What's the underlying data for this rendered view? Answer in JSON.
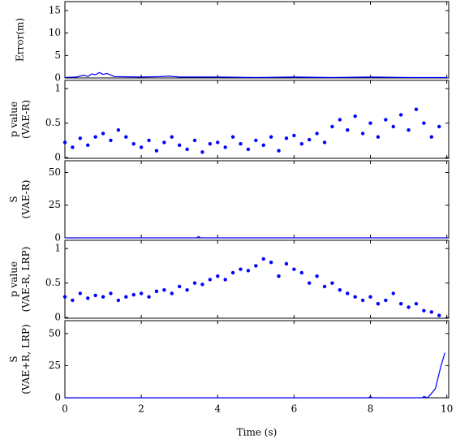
{
  "chart_data": [
    {
      "type": "line",
      "ylabel": [
        "Error(m)"
      ],
      "color": "#0000ff",
      "x": [
        0,
        0.3,
        0.5,
        0.6,
        0.7,
        0.8,
        0.9,
        1.0,
        1.1,
        1.3,
        2.0,
        2.5,
        2.7,
        3.0,
        4.0,
        5.0,
        6.0,
        7.0,
        8.0,
        9.0,
        10.0
      ],
      "values": [
        0.1,
        0.2,
        0.6,
        0.3,
        0.9,
        0.7,
        1.2,
        0.8,
        1.0,
        0.3,
        0.2,
        0.3,
        0.4,
        0.2,
        0.2,
        0.1,
        0.2,
        0.1,
        0.2,
        0.1,
        0.1
      ],
      "xlim": [
        0,
        10.05
      ],
      "ylim": [
        0,
        17
      ],
      "yticks": [
        0,
        5,
        10,
        15
      ]
    },
    {
      "type": "scatter",
      "ylabel": [
        "p value",
        "(VAE-R)"
      ],
      "color": "#0000ff",
      "x": [
        0,
        0.2,
        0.4,
        0.6,
        0.8,
        1.0,
        1.2,
        1.4,
        1.6,
        1.8,
        2.0,
        2.2,
        2.4,
        2.6,
        2.8,
        3.0,
        3.2,
        3.4,
        3.6,
        3.8,
        4.0,
        4.2,
        4.4,
        4.6,
        4.8,
        5.0,
        5.2,
        5.4,
        5.6,
        5.8,
        6.0,
        6.2,
        6.4,
        6.6,
        6.8,
        7.0,
        7.2,
        7.4,
        7.6,
        7.8,
        8.0,
        8.2,
        8.4,
        8.6,
        8.8,
        9.0,
        9.2,
        9.4,
        9.6,
        9.8
      ],
      "values": [
        0.22,
        0.15,
        0.28,
        0.18,
        0.3,
        0.35,
        0.25,
        0.4,
        0.3,
        0.2,
        0.15,
        0.25,
        0.1,
        0.22,
        0.3,
        0.18,
        0.12,
        0.25,
        0.08,
        0.2,
        0.22,
        0.15,
        0.3,
        0.2,
        0.12,
        0.25,
        0.18,
        0.3,
        0.1,
        0.28,
        0.32,
        0.2,
        0.26,
        0.35,
        0.22,
        0.45,
        0.55,
        0.4,
        0.6,
        0.35,
        0.5,
        0.3,
        0.55,
        0.45,
        0.62,
        0.4,
        0.7,
        0.5,
        0.3,
        0.45
      ],
      "xlim": [
        0,
        10.05
      ],
      "ylim": [
        -0.01,
        1.12
      ],
      "yticks": [
        0,
        0.5,
        1
      ]
    },
    {
      "type": "line",
      "ylabel": [
        "S",
        "(VAE-R)"
      ],
      "color": "#0000ff",
      "x": [
        0,
        3.45,
        3.5,
        3.55,
        10
      ],
      "values": [
        0,
        0,
        1,
        0,
        0
      ],
      "xlim": [
        0,
        10.05
      ],
      "ylim": [
        0,
        59
      ],
      "yticks": [
        0,
        25,
        50
      ]
    },
    {
      "type": "scatter",
      "ylabel": [
        "p value",
        "(VAE-R, LRP)"
      ],
      "color": "#0000ff",
      "x": [
        0,
        0.2,
        0.4,
        0.6,
        0.8,
        1.0,
        1.2,
        1.4,
        1.6,
        1.8,
        2.0,
        2.2,
        2.4,
        2.6,
        2.8,
        3.0,
        3.2,
        3.4,
        3.6,
        3.8,
        4.0,
        4.2,
        4.4,
        4.6,
        4.8,
        5.0,
        5.2,
        5.4,
        5.6,
        5.8,
        6.0,
        6.2,
        6.4,
        6.6,
        6.8,
        7.0,
        7.2,
        7.4,
        7.6,
        7.8,
        8.0,
        8.2,
        8.4,
        8.6,
        8.8,
        9.0,
        9.2,
        9.4,
        9.6,
        9.8
      ],
      "values": [
        0.3,
        0.25,
        0.35,
        0.28,
        0.32,
        0.3,
        0.35,
        0.25,
        0.3,
        0.33,
        0.35,
        0.3,
        0.38,
        0.4,
        0.35,
        0.45,
        0.4,
        0.5,
        0.48,
        0.55,
        0.6,
        0.55,
        0.65,
        0.7,
        0.68,
        0.75,
        0.85,
        0.8,
        0.6,
        0.78,
        0.7,
        0.65,
        0.5,
        0.6,
        0.45,
        0.5,
        0.4,
        0.35,
        0.3,
        0.25,
        0.3,
        0.2,
        0.25,
        0.35,
        0.2,
        0.15,
        0.2,
        0.1,
        0.08,
        0.03
      ],
      "xlim": [
        0,
        10.05
      ],
      "ylim": [
        -0.01,
        1.12
      ],
      "yticks": [
        0,
        0.5,
        1
      ]
    },
    {
      "type": "line",
      "ylabel": [
        "S",
        "(VAE+R, LRP)"
      ],
      "color": "#0000ff",
      "x": [
        0,
        7.95,
        8.0,
        8.05,
        9.35,
        9.4,
        9.5,
        9.7,
        9.85,
        9.95
      ],
      "values": [
        0,
        0,
        1,
        0,
        0,
        1,
        0,
        7,
        25,
        35
      ],
      "xlim": [
        0,
        10.05
      ],
      "ylim": [
        0,
        60
      ],
      "yticks": [
        0,
        25,
        50
      ],
      "xticks": [
        0,
        2,
        4,
        6,
        8,
        10
      ],
      "xlabel": "Time (s)"
    }
  ]
}
